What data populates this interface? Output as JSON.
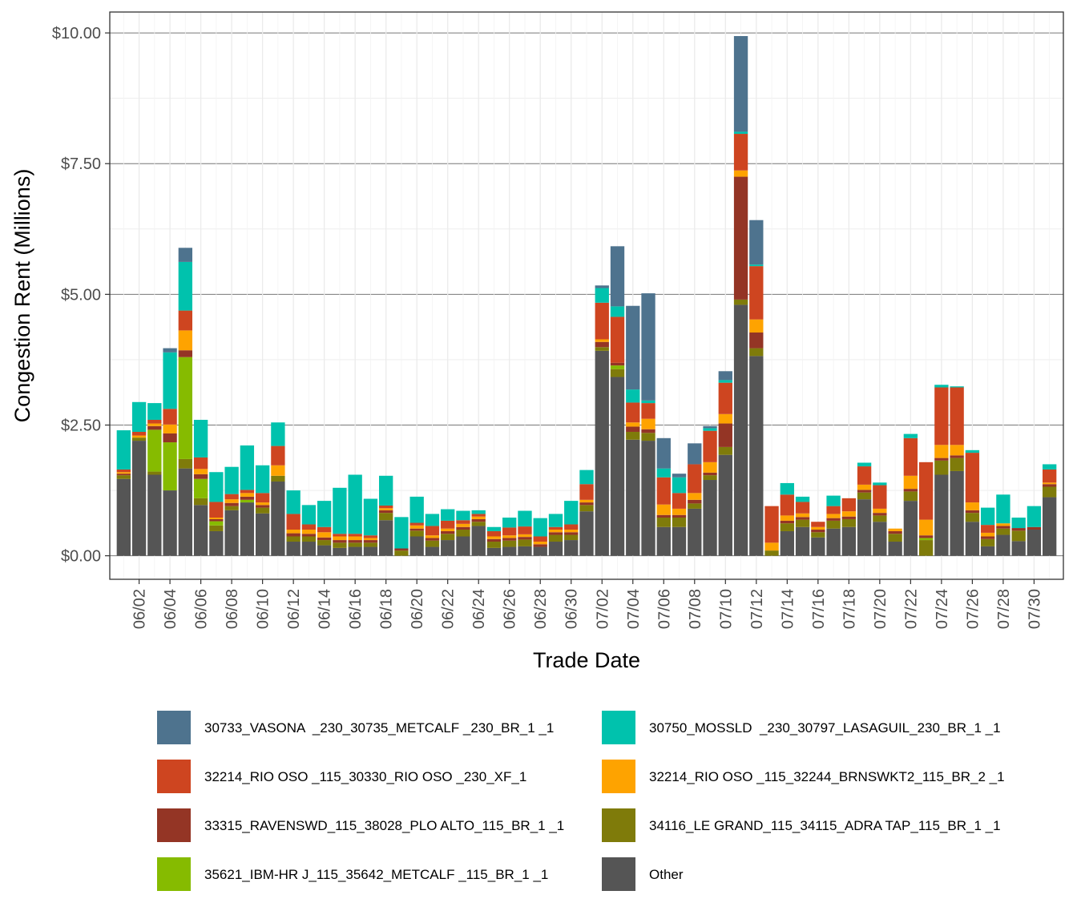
{
  "chart_data": {
    "type": "bar",
    "stacked": true,
    "title": "",
    "xlabel": "Trade Date",
    "ylabel": "Congestion Rent (Millions)",
    "ylim": [
      -0.45,
      10.4
    ],
    "yticks": [
      0,
      2.5,
      5,
      7.5,
      10
    ],
    "ytick_labels": [
      "$0.00",
      "$2.50",
      "$5.00",
      "$7.50",
      "$10.00"
    ],
    "xtick_labels": [
      "06/02",
      "06/04",
      "06/06",
      "06/08",
      "06/10",
      "06/12",
      "06/14",
      "06/16",
      "06/18",
      "06/20",
      "06/22",
      "06/24",
      "06/26",
      "06/28",
      "06/30",
      "07/02",
      "07/04",
      "07/06",
      "07/08",
      "07/10",
      "07/12",
      "07/14",
      "07/16",
      "07/18",
      "07/20",
      "07/22",
      "07/24",
      "07/26",
      "07/28",
      "07/30"
    ],
    "categories": [
      "06/01",
      "06/02",
      "06/03",
      "06/04",
      "06/05",
      "06/06",
      "06/07",
      "06/08",
      "06/09",
      "06/10",
      "06/11",
      "06/12",
      "06/13",
      "06/14",
      "06/15",
      "06/16",
      "06/17",
      "06/18",
      "06/19",
      "06/20",
      "06/21",
      "06/22",
      "06/23",
      "06/24",
      "06/25",
      "06/26",
      "06/27",
      "06/28",
      "06/29",
      "06/30",
      "07/01",
      "07/02",
      "07/03",
      "07/04",
      "07/05",
      "07/06",
      "07/07",
      "07/08",
      "07/09",
      "07/10",
      "07/11",
      "07/12",
      "07/13",
      "07/14",
      "07/15",
      "07/16",
      "07/17",
      "07/18",
      "07/19",
      "07/20",
      "07/21",
      "07/22",
      "07/23",
      "07/24",
      "07/25",
      "07/26",
      "07/27",
      "07/28",
      "07/29",
      "07/30",
      "07/31"
    ],
    "series": [
      {
        "name": "Other",
        "color": "#555555",
        "values": [
          1.47,
          2.2,
          1.55,
          1.25,
          1.67,
          0.97,
          0.47,
          0.87,
          1.02,
          0.81,
          1.42,
          0.27,
          0.27,
          0.2,
          0.15,
          0.17,
          0.17,
          0.68,
          0.0,
          0.37,
          0.17,
          0.3,
          0.37,
          0.57,
          0.15,
          0.17,
          0.18,
          0.17,
          0.27,
          0.3,
          0.85,
          3.92,
          3.42,
          2.22,
          2.2,
          0.55,
          0.55,
          0.9,
          1.45,
          1.93,
          4.8,
          3.82,
          0.0,
          0.47,
          0.55,
          0.35,
          0.52,
          0.55,
          1.08,
          0.65,
          0.27,
          1.05,
          0.0,
          1.55,
          1.62,
          0.65,
          0.18,
          0.4,
          0.28,
          0.5,
          1.12
        ]
      },
      {
        "name": "34116_LE GRAND_115_34115_ADRA TAP_115_BR_1 _1",
        "color": "#7F7B0A",
        "values": [
          0.07,
          0.06,
          0.06,
          0.0,
          0.18,
          0.13,
          0.11,
          0.08,
          0.0,
          0.11,
          0.11,
          0.1,
          0.1,
          0.1,
          0.1,
          0.08,
          0.08,
          0.14,
          0.1,
          0.11,
          0.12,
          0.12,
          0.13,
          0.08,
          0.12,
          0.12,
          0.13,
          0.0,
          0.13,
          0.1,
          0.12,
          0.07,
          0.15,
          0.15,
          0.15,
          0.18,
          0.18,
          0.1,
          0.09,
          0.15,
          0.1,
          0.15,
          0.1,
          0.15,
          0.14,
          0.1,
          0.15,
          0.15,
          0.13,
          0.12,
          0.15,
          0.18,
          0.3,
          0.27,
          0.25,
          0.17,
          0.14,
          0.12,
          0.2,
          0.0,
          0.2
        ]
      },
      {
        "name": "35621_IBM-HR J_115_35642_METCALF _115_BR_1 _1",
        "color": "#86BB00",
        "values": [
          0.0,
          0.0,
          0.8,
          0.92,
          1.95,
          0.37,
          0.08,
          0.0,
          0.05,
          0.0,
          0.0,
          0.0,
          0.0,
          0.0,
          0.0,
          0.0,
          0.0,
          0.0,
          0.0,
          0.0,
          0.0,
          0.0,
          0.0,
          0.0,
          0.0,
          0.0,
          0.0,
          0.0,
          0.0,
          0.0,
          0.0,
          0.0,
          0.07,
          0.0,
          0.0,
          0.0,
          0.0,
          0.0,
          0.0,
          0.0,
          0.0,
          0.0,
          0.0,
          0.0,
          0.0,
          0.0,
          0.0,
          0.0,
          0.0,
          0.0,
          0.0,
          0.0,
          0.04,
          0.0,
          0.0,
          0.0,
          0.0,
          0.0,
          0.0,
          0.0,
          0.0
        ]
      },
      {
        "name": "33315_RAVENSWD_115_38028_PLO ALTO_115_BR_1 _1",
        "color": "#943525",
        "values": [
          0.03,
          0.0,
          0.07,
          0.17,
          0.13,
          0.09,
          0.04,
          0.06,
          0.06,
          0.05,
          0.0,
          0.06,
          0.05,
          0.05,
          0.05,
          0.05,
          0.05,
          0.05,
          0.04,
          0.04,
          0.05,
          0.05,
          0.05,
          0.05,
          0.05,
          0.05,
          0.05,
          0.05,
          0.05,
          0.05,
          0.05,
          0.1,
          0.05,
          0.1,
          0.07,
          0.05,
          0.05,
          0.07,
          0.05,
          0.45,
          2.35,
          0.3,
          0.0,
          0.05,
          0.05,
          0.05,
          0.05,
          0.05,
          0.05,
          0.05,
          0.05,
          0.05,
          0.05,
          0.05,
          0.05,
          0.05,
          0.05,
          0.05,
          0.05,
          0.05,
          0.05
        ]
      },
      {
        "name": "32214_RIO OSO _115_32244_BRNSWKT2_115_BR_2 _1",
        "color": "#FEA300",
        "values": [
          0.03,
          0.04,
          0.05,
          0.17,
          0.38,
          0.1,
          0.03,
          0.07,
          0.07,
          0.05,
          0.2,
          0.07,
          0.08,
          0.1,
          0.07,
          0.07,
          0.04,
          0.04,
          0.0,
          0.06,
          0.05,
          0.05,
          0.06,
          0.05,
          0.05,
          0.05,
          0.05,
          0.05,
          0.05,
          0.05,
          0.05,
          0.05,
          0.0,
          0.08,
          0.2,
          0.2,
          0.12,
          0.13,
          0.2,
          0.18,
          0.12,
          0.25,
          0.15,
          0.1,
          0.07,
          0.05,
          0.08,
          0.1,
          0.1,
          0.08,
          0.05,
          0.25,
          0.3,
          0.25,
          0.2,
          0.15,
          0.07,
          0.05,
          0.0,
          0.0,
          0.03
        ]
      },
      {
        "name": "32214_RIO OSO _115_30330_RIO OSO _230_XF_1",
        "color": "#CE4520",
        "values": [
          0.05,
          0.07,
          0.07,
          0.3,
          0.38,
          0.22,
          0.3,
          0.1,
          0.06,
          0.18,
          0.37,
          0.3,
          0.1,
          0.1,
          0.05,
          0.05,
          0.05,
          0.05,
          0.0,
          0.05,
          0.18,
          0.15,
          0.07,
          0.05,
          0.1,
          0.15,
          0.15,
          0.1,
          0.05,
          0.1,
          0.3,
          0.7,
          0.88,
          0.38,
          0.3,
          0.52,
          0.3,
          0.55,
          0.6,
          0.6,
          0.7,
          1.02,
          0.7,
          0.4,
          0.22,
          0.1,
          0.15,
          0.25,
          0.35,
          0.45,
          0.0,
          0.72,
          1.1,
          1.1,
          1.1,
          0.95,
          0.15,
          0.0,
          0.0,
          0.0,
          0.25
        ]
      },
      {
        "name": "30750_MOSSLD  _230_30797_LASAGUIL_230_BR_1 _1",
        "color": "#00C2AD",
        "values": [
          0.75,
          0.57,
          0.32,
          1.08,
          0.93,
          0.72,
          0.57,
          0.52,
          0.85,
          0.53,
          0.45,
          0.45,
          0.37,
          0.5,
          0.88,
          1.13,
          0.7,
          0.57,
          0.6,
          0.5,
          0.23,
          0.22,
          0.18,
          0.07,
          0.08,
          0.19,
          0.3,
          0.35,
          0.25,
          0.45,
          0.27,
          0.28,
          0.2,
          0.25,
          0.05,
          0.17,
          0.3,
          0.0,
          0.05,
          0.05,
          0.04,
          0.03,
          0.0,
          0.22,
          0.1,
          0.0,
          0.2,
          0.0,
          0.07,
          0.05,
          0.0,
          0.08,
          0.0,
          0.05,
          0.02,
          0.05,
          0.33,
          0.55,
          0.2,
          0.4,
          0.1
        ]
      },
      {
        "name": "30733_VASONA  _230_30735_METCALF _230_BR_1 _1",
        "color": "#4E738E",
        "values": [
          0.0,
          0.0,
          0.0,
          0.08,
          0.27,
          0.0,
          0.0,
          0.0,
          0.0,
          0.0,
          0.0,
          0.0,
          0.0,
          0.0,
          0.0,
          0.0,
          0.0,
          0.0,
          0.0,
          0.0,
          0.0,
          0.0,
          0.0,
          0.0,
          0.0,
          0.0,
          0.0,
          0.0,
          0.0,
          0.0,
          0.0,
          0.05,
          1.15,
          1.6,
          2.05,
          0.58,
          0.07,
          0.4,
          0.04,
          0.17,
          1.83,
          0.85,
          0.0,
          0.0,
          0.0,
          0.0,
          0.0,
          0.0,
          0.0,
          0.0,
          0.0,
          0.0,
          0.0,
          0.0,
          0.0,
          0.0,
          0.0,
          0.0,
          0.0,
          0.0,
          0.0
        ]
      }
    ],
    "legend": {
      "position": "bottom",
      "order": [
        "30733_VASONA  _230_30735_METCALF _230_BR_1 _1",
        "30750_MOSSLD  _230_30797_LASAGUIL_230_BR_1 _1",
        "32214_RIO OSO _115_30330_RIO OSO _230_XF_1",
        "32214_RIO OSO _115_32244_BRNSWKT2_115_BR_2 _1",
        "33315_RAVENSWD_115_38028_PLO ALTO_115_BR_1 _1",
        "34116_LE GRAND_115_34115_ADRA TAP_115_BR_1 _1",
        "35621_IBM-HR J_115_35642_METCALF _115_BR_1 _1",
        "Other"
      ]
    }
  }
}
